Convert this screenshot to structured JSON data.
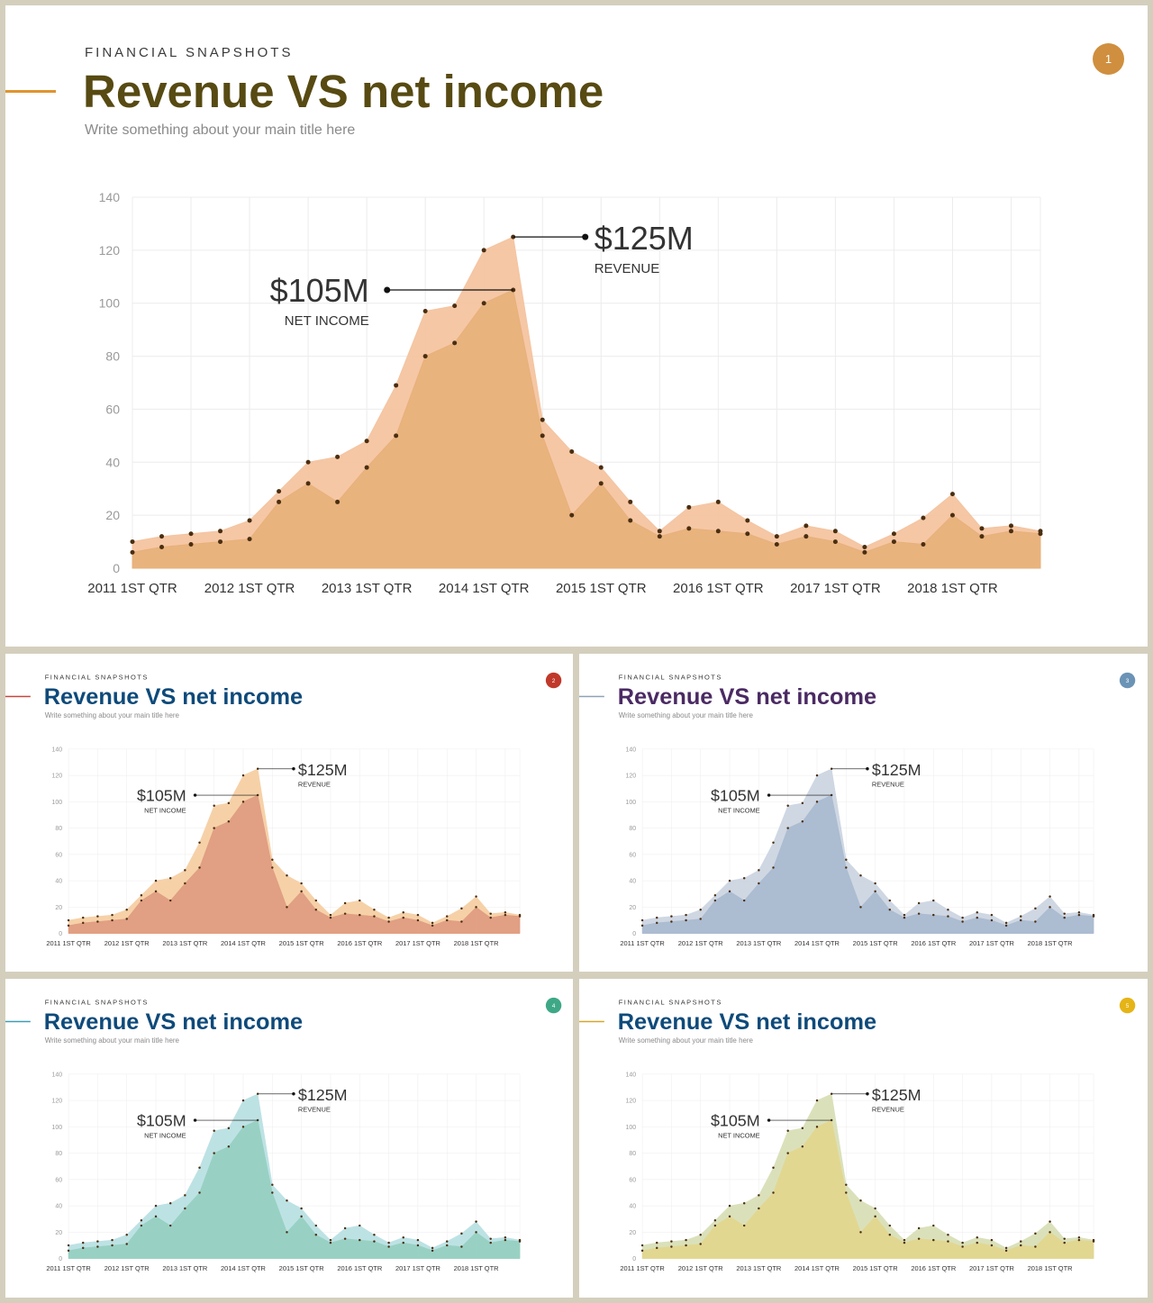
{
  "slides": [
    {
      "eyebrow": "FINANCIAL SNAPSHOTS",
      "title": "Revenue VS net income",
      "subtitle": "Write something about your main title here",
      "page_number": "1",
      "colors": {
        "title": "#574a12",
        "badge": "#cf8f3e",
        "accent": "#e0932f",
        "fill": "#e8b07a",
        "revenue_fill": "#f4c4a0"
      }
    },
    {
      "eyebrow": "FINANCIAL SNAPSHOTS",
      "title": "Revenue VS net income",
      "subtitle": "Write something about your main title here",
      "page_number": "2",
      "colors": {
        "title": "#0e4a7a",
        "badge": "#c0392b",
        "accent": "#c8443a",
        "fill": "#df9a80",
        "revenue_fill": "#f5cfa3"
      }
    },
    {
      "eyebrow": "FINANCIAL SNAPSHOTS",
      "title": "Revenue VS net income",
      "subtitle": "Write something about your main title here",
      "page_number": "3",
      "colors": {
        "title": "#4a2a63",
        "badge": "#6b93b5",
        "accent": "#8ea0ba",
        "fill": "#a9b9cf",
        "revenue_fill": "#ccd5e2"
      }
    },
    {
      "eyebrow": "FINANCIAL SNAPSHOTS",
      "title": "Revenue VS net income",
      "subtitle": "Write something about your main title here",
      "page_number": "4",
      "colors": {
        "title": "#0e4a7a",
        "badge": "#3ea886",
        "accent": "#3b9db5",
        "fill": "#95cfc0",
        "revenue_fill": "#b9e0e3"
      }
    },
    {
      "eyebrow": "FINANCIAL SNAPSHOTS",
      "title": "Revenue VS net income",
      "subtitle": "Write something about your main title here",
      "page_number": "5",
      "colors": {
        "title": "#0e4a7a",
        "badge": "#e5b416",
        "accent": "#d7a62a",
        "fill": "#e3d68d",
        "revenue_fill": "#d8dfb6"
      }
    }
  ],
  "callouts": {
    "revenue": {
      "value": "$125M",
      "caption": "REVENUE"
    },
    "net_income": {
      "value": "$105M",
      "caption": "NET INCOME"
    }
  },
  "chart_data": {
    "type": "area",
    "x_tick_labels": [
      "2011 1ST QTR",
      "2012 1ST QTR",
      "2013 1ST QTR",
      "2014 1ST QTR",
      "2015 1ST QTR",
      "2016 1ST QTR",
      "2017 1ST QTR",
      "2018 1ST QTR"
    ],
    "y_ticks": [
      0,
      20,
      40,
      60,
      80,
      100,
      120,
      140
    ],
    "ylim": [
      0,
      140
    ],
    "x": [
      "2011 Q1",
      "2011 Q2",
      "2011 Q3",
      "2011 Q4",
      "2012 Q1",
      "2012 Q2",
      "2012 Q3",
      "2012 Q4",
      "2013 Q1",
      "2013 Q2",
      "2013 Q3",
      "2013 Q4",
      "2014 Q1",
      "2014 Q2",
      "2014 Q3",
      "2014 Q4",
      "2015 Q1",
      "2015 Q2",
      "2015 Q3",
      "2015 Q4",
      "2016 Q1",
      "2016 Q2",
      "2016 Q3",
      "2016 Q4",
      "2017 Q1",
      "2017 Q2",
      "2017 Q3",
      "2017 Q4",
      "2018 Q1",
      "2018 Q2",
      "2018 Q3",
      "2018 Q4"
    ],
    "series": [
      {
        "name": "REVENUE",
        "values": [
          10,
          12,
          13,
          14,
          18,
          29,
          40,
          42,
          48,
          69,
          97,
          99,
          120,
          125,
          56,
          44,
          38,
          25,
          14,
          23,
          25,
          18,
          12,
          16,
          14,
          8,
          13,
          19,
          28,
          15,
          16,
          14
        ]
      },
      {
        "name": "NET INCOME",
        "values": [
          6,
          8,
          9,
          10,
          11,
          25,
          32,
          25,
          38,
          50,
          80,
          85,
          100,
          105,
          50,
          20,
          32,
          18,
          12,
          15,
          14,
          13,
          9,
          12,
          10,
          6,
          10,
          9,
          20,
          12,
          14,
          13
        ]
      }
    ],
    "grid": true
  }
}
